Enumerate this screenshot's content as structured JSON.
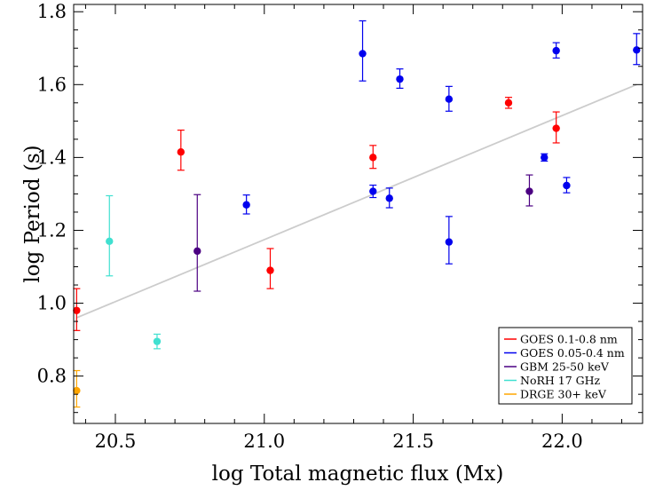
{
  "chart_data": {
    "type": "scatter",
    "title": "",
    "xlabel": "log Total magnetic flux (Mx)",
    "ylabel": "log Period (s)",
    "xlim": [
      20.36,
      22.27
    ],
    "ylim": [
      0.67,
      1.82
    ],
    "xticks": [
      20.5,
      21.0,
      21.5,
      22.0
    ],
    "xtick_labels": [
      "20.5",
      "21.0",
      "21.5",
      "22.0"
    ],
    "yticks": [
      0.8,
      1.0,
      1.2,
      1.4,
      1.6,
      1.8
    ],
    "ytick_labels": [
      "0.8",
      "1.0",
      "1.2",
      "1.4",
      "1.6",
      "1.8"
    ],
    "grid": false,
    "legend_position": "bottom-right",
    "fit_line": {
      "color": "#cccccc",
      "x": [
        20.37,
        22.25
      ],
      "y": [
        0.96,
        1.6
      ]
    },
    "series": [
      {
        "name": "GOES 0.1-0.8 nm",
        "color": "#ff0000",
        "points": [
          {
            "x": 20.37,
            "y": 0.98,
            "err_up": 0.06,
            "err_down": 0.055
          },
          {
            "x": 20.72,
            "y": 1.415,
            "err_up": 0.06,
            "err_down": 0.05
          },
          {
            "x": 21.02,
            "y": 1.09,
            "err_up": 0.06,
            "err_down": 0.05
          },
          {
            "x": 21.365,
            "y": 1.4,
            "err_up": 0.033,
            "err_down": 0.03
          },
          {
            "x": 21.82,
            "y": 1.55,
            "err_up": 0.015,
            "err_down": 0.015
          },
          {
            "x": 21.98,
            "y": 1.48,
            "err_up": 0.045,
            "err_down": 0.04
          }
        ]
      },
      {
        "name": "GOES 0.05-0.4 nm",
        "color": "#0000ee",
        "points": [
          {
            "x": 20.94,
            "y": 1.27,
            "err_up": 0.027,
            "err_down": 0.025
          },
          {
            "x": 21.33,
            "y": 1.685,
            "err_up": 0.09,
            "err_down": 0.075
          },
          {
            "x": 21.365,
            "y": 1.307,
            "err_up": 0.017,
            "err_down": 0.017
          },
          {
            "x": 21.42,
            "y": 1.288,
            "err_up": 0.028,
            "err_down": 0.026
          },
          {
            "x": 21.455,
            "y": 1.615,
            "err_up": 0.028,
            "err_down": 0.025
          },
          {
            "x": 21.62,
            "y": 1.56,
            "err_up": 0.035,
            "err_down": 0.033
          },
          {
            "x": 21.62,
            "y": 1.168,
            "err_up": 0.07,
            "err_down": 0.06
          },
          {
            "x": 21.94,
            "y": 1.4,
            "err_up": 0.01,
            "err_down": 0.01
          },
          {
            "x": 21.98,
            "y": 1.693,
            "err_up": 0.022,
            "err_down": 0.02
          },
          {
            "x": 22.015,
            "y": 1.323,
            "err_up": 0.022,
            "err_down": 0.02
          },
          {
            "x": 22.25,
            "y": 1.695,
            "err_up": 0.045,
            "err_down": 0.04
          }
        ]
      },
      {
        "name": "GBM 25-50 keV",
        "color": "#4b0082",
        "points": [
          {
            "x": 20.775,
            "y": 1.143,
            "err_up": 0.155,
            "err_down": 0.11
          },
          {
            "x": 21.89,
            "y": 1.307,
            "err_up": 0.045,
            "err_down": 0.04
          }
        ]
      },
      {
        "name": "NoRH 17 GHz",
        "color": "#40e0d0",
        "points": [
          {
            "x": 20.48,
            "y": 1.17,
            "err_up": 0.125,
            "err_down": 0.095
          },
          {
            "x": 20.64,
            "y": 0.895,
            "err_up": 0.02,
            "err_down": 0.02
          }
        ]
      },
      {
        "name": "DRGE 30+ keV",
        "color": "#ffa500",
        "points": [
          {
            "x": 20.37,
            "y": 0.76,
            "err_up": 0.055,
            "err_down": 0.045
          }
        ]
      }
    ]
  }
}
